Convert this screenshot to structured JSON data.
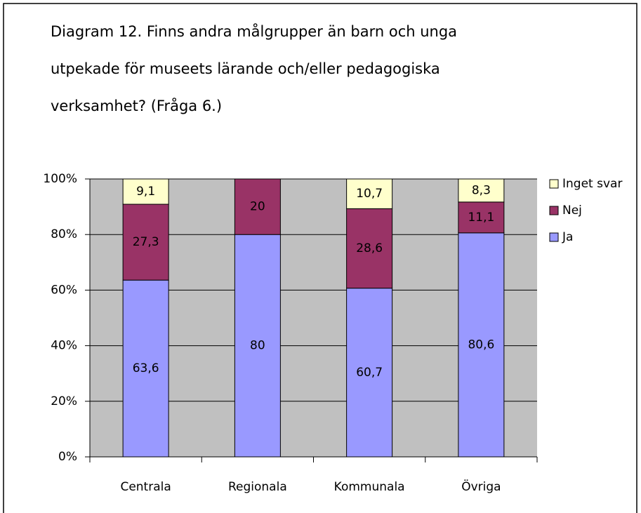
{
  "chart_data": {
    "type": "stacked_bar",
    "title": [
      "Diagram 12. Finns andra målgrupper än barn och unga",
      "utpekade för museets lärande och/eller pedagogiska",
      "verksamhet? (Fråga 6.)"
    ],
    "categories": [
      "Centrala",
      "Regionala",
      "Kommunala",
      "Övriga"
    ],
    "series": [
      {
        "name": "Ja",
        "color": "#9999ff",
        "values": [
          63.6,
          80,
          60.7,
          80.6
        ],
        "value_labels": [
          "63,6",
          "80",
          "60,7",
          "80,6"
        ]
      },
      {
        "name": "Nej",
        "color": "#993366",
        "values": [
          27.3,
          20,
          28.6,
          11.1
        ],
        "value_labels": [
          "27,3",
          "20",
          "28,6",
          "11,1"
        ]
      },
      {
        "name": "Inget svar",
        "color": "#ffffcc",
        "values": [
          9.1,
          null,
          10.7,
          8.3
        ],
        "value_labels": [
          "9,1",
          null,
          "10,7",
          "8,3"
        ]
      }
    ],
    "ylim": [
      0,
      100
    ],
    "yticks": [
      {
        "value": 0,
        "label": "0%"
      },
      {
        "value": 20,
        "label": "20%"
      },
      {
        "value": 40,
        "label": "40%"
      },
      {
        "value": 60,
        "label": "60%"
      },
      {
        "value": 80,
        "label": "80%"
      },
      {
        "value": 100,
        "label": "100%"
      }
    ],
    "grid": true,
    "plot_background": "#c0c0c0",
    "legend": "right"
  }
}
